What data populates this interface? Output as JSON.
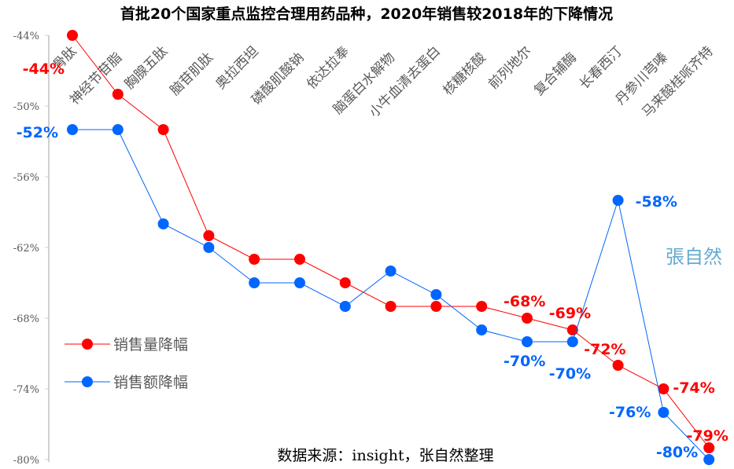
{
  "chart_data": {
    "type": "line",
    "title": "首批20个国家重点监控合理用药品种，2020年销售较2018年的下降情况",
    "categories": [
      "骨肽",
      "神经节苷脂",
      "胸腺五肽",
      "脑苷肌肽",
      "奥拉西坦",
      "磷酸肌酸钠",
      "依达拉奉",
      "脑蛋白水解物",
      "小牛血清去蛋白",
      "核糖核酸",
      "前列地尔",
      "复合辅酶",
      "长春西汀",
      "丹参川芎嗪",
      "马来酸桂哌齐特"
    ],
    "ylim": [
      -80,
      -44
    ],
    "yticks": [
      -44,
      -50,
      -56,
      -62,
      -68,
      -74,
      -80
    ],
    "ytick_labels": [
      "-44%",
      "-50%",
      "-56%",
      "-62%",
      "-68%",
      "-74%",
      "-80%"
    ],
    "series": [
      {
        "name": "销售量降幅",
        "color": "#ff0000",
        "values": [
          -44,
          -49,
          -52,
          -61,
          -63,
          -63,
          -65,
          -67,
          -67,
          -67,
          -68,
          -69,
          -72,
          -74,
          -79
        ],
        "labels": [
          "-44%",
          "",
          "",
          "",
          "",
          "",
          "",
          "",
          "",
          "",
          "-68%",
          "-69%",
          "-72%",
          "-74%",
          "-79%"
        ]
      },
      {
        "name": "销售额降幅",
        "color": "#0066ff",
        "values": [
          -52,
          -52,
          -60,
          -62,
          -65,
          -65,
          -67,
          -64,
          -66,
          -69,
          -70,
          -70,
          -58,
          -76,
          -80
        ],
        "labels": [
          "-52%",
          "",
          "",
          "",
          "",
          "",
          "",
          "",
          "",
          "",
          "-70%",
          "-70%",
          "-58%",
          "-76%",
          "-80%"
        ]
      }
    ],
    "legend": "bottom-left",
    "source": "数据来源：insight，张自然整理",
    "watermark": "張自然"
  }
}
